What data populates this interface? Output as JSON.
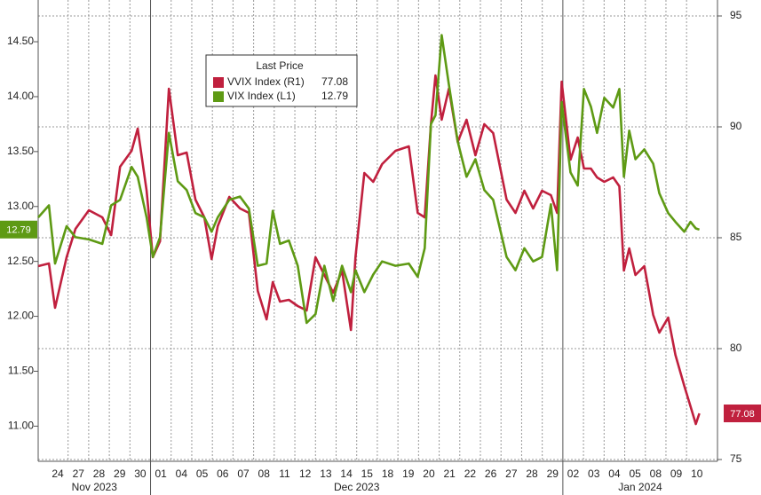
{
  "chart_data": {
    "type": "line",
    "legend_title": "Last Price",
    "legend": "upper left",
    "grid": true,
    "xlim": [
      -0.95,
      32
    ],
    "x": [
      -0.95,
      -0.43,
      -0.13,
      0.43,
      0.86,
      1.51,
      2.16,
      2.59,
      3.02,
      3.58,
      3.88,
      4.31,
      4.61,
      4.96,
      5.39,
      5.82,
      6.25,
      6.68,
      7.11,
      7.46,
      7.76,
      8.32,
      8.84,
      9.27,
      9.7,
      10.13,
      10.43,
      10.78,
      11.21,
      11.64,
      12.07,
      12.5,
      12.93,
      13.36,
      13.79,
      14.22,
      14.44,
      14.87,
      15.3,
      15.73,
      16.38,
      17.03,
      17.46,
      17.8,
      18.1,
      18.32,
      18.62,
      18.97,
      19.4,
      19.83,
      20.26,
      20.69,
      21.12,
      21.77,
      22.2,
      22.63,
      23.06,
      23.49,
      23.92,
      24.22,
      24.44,
      24.87,
      25.22,
      25.52,
      25.86,
      26.16,
      26.51,
      26.94,
      27.24,
      27.46,
      27.72,
      28.02,
      28.45,
      28.88,
      29.18,
      29.61,
      29.96,
      30.39,
      30.69,
      30.95,
      31.12
    ],
    "xticks": [
      {
        "value": 0,
        "label": "24"
      },
      {
        "value": 1,
        "label": "27"
      },
      {
        "value": 2,
        "label": "28"
      },
      {
        "value": 3,
        "label": "29"
      },
      {
        "value": 4,
        "label": "30"
      },
      {
        "value": 5,
        "label": "01"
      },
      {
        "value": 6,
        "label": "04"
      },
      {
        "value": 7,
        "label": "05"
      },
      {
        "value": 8,
        "label": "06"
      },
      {
        "value": 9,
        "label": "07"
      },
      {
        "value": 10,
        "label": "08"
      },
      {
        "value": 11,
        "label": "11"
      },
      {
        "value": 12,
        "label": "12"
      },
      {
        "value": 13,
        "label": "13"
      },
      {
        "value": 14,
        "label": "14"
      },
      {
        "value": 15,
        "label": "15"
      },
      {
        "value": 16,
        "label": "18"
      },
      {
        "value": 17,
        "label": "19"
      },
      {
        "value": 18,
        "label": "20"
      },
      {
        "value": 19,
        "label": "21"
      },
      {
        "value": 20,
        "label": "22"
      },
      {
        "value": 21,
        "label": "26"
      },
      {
        "value": 22,
        "label": "27"
      },
      {
        "value": 23,
        "label": "28"
      },
      {
        "value": 24,
        "label": "29"
      },
      {
        "value": 25,
        "label": "02"
      },
      {
        "value": 26,
        "label": "03"
      },
      {
        "value": 27,
        "label": "04"
      },
      {
        "value": 28,
        "label": "05"
      },
      {
        "value": 29,
        "label": "08"
      },
      {
        "value": 30,
        "label": "09"
      },
      {
        "value": 31,
        "label": "10"
      }
    ],
    "x_groups": [
      "Nov 2023",
      "Dec 2023",
      "Jan 2024"
    ],
    "ylim": [
      10.68,
      14.88
    ],
    "yticks": [
      {
        "value": 11,
        "label": "11.00"
      },
      {
        "value": 11.5,
        "label": "11.50"
      },
      {
        "value": 12,
        "label": "12.00"
      },
      {
        "value": 12.5,
        "label": "12.50"
      },
      {
        "value": 13,
        "label": "13.00"
      },
      {
        "value": 13.5,
        "label": "13.50"
      },
      {
        "value": 14,
        "label": "14.00"
      },
      {
        "value": 14.5,
        "label": "14.50"
      }
    ],
    "y2lim": [
      74.92,
      95.72
    ],
    "y2ticks": [
      75,
      80,
      85,
      90,
      95
    ],
    "series": [
      {
        "name": "VVIX Index  (R1)",
        "color": "#c0203e",
        "axis": "y2",
        "values": [
          83.72,
          83.84,
          81.84,
          84.12,
          85.4,
          86.24,
          85.92,
          85.12,
          88.2,
          88.92,
          89.92,
          87.12,
          84.12,
          84.84,
          91.72,
          88.72,
          88.84,
          86.72,
          85.92,
          84.04,
          85.52,
          86.84,
          86.32,
          86.12,
          82.6,
          81.32,
          83.0,
          82.12,
          82.2,
          81.92,
          81.72,
          84.12,
          83.32,
          82.52,
          83.52,
          80.84,
          84.12,
          87.92,
          87.52,
          88.32,
          88.92,
          89.12,
          86.12,
          85.92,
          90.12,
          92.32,
          90.32,
          91.72,
          89.32,
          90.32,
          88.72,
          90.12,
          89.72,
          86.72,
          86.12,
          87.12,
          86.32,
          87.12,
          86.92,
          86.12,
          92.04,
          88.52,
          89.52,
          88.12,
          88.12,
          87.72,
          87.52,
          87.72,
          87.32,
          83.52,
          84.52,
          83.32,
          83.72,
          81.52,
          80.72,
          81.4,
          79.72,
          78.32,
          77.4,
          76.6,
          77.08
        ]
      },
      {
        "name": "VIX Index  (L1)",
        "color": "#5e9a14",
        "axis": "y",
        "values": [
          12.9,
          13.01,
          12.48,
          12.82,
          12.72,
          12.7,
          12.66,
          13.01,
          13.06,
          13.36,
          13.27,
          12.9,
          12.54,
          12.72,
          13.67,
          13.23,
          13.15,
          12.94,
          12.9,
          12.77,
          12.9,
          13.06,
          13.09,
          12.98,
          12.46,
          12.48,
          12.96,
          12.66,
          12.69,
          12.46,
          11.94,
          12.02,
          12.46,
          12.14,
          12.46,
          12.22,
          12.42,
          12.22,
          12.38,
          12.5,
          12.46,
          12.48,
          12.36,
          12.62,
          13.75,
          13.83,
          14.56,
          14.11,
          13.59,
          13.27,
          13.43,
          13.15,
          13.06,
          12.54,
          12.42,
          12.62,
          12.5,
          12.54,
          13.02,
          12.42,
          13.95,
          13.31,
          13.19,
          14.07,
          13.91,
          13.67,
          13.99,
          13.9,
          14.07,
          13.27,
          13.69,
          13.43,
          13.52,
          13.39,
          13.12,
          12.94,
          12.86,
          12.77,
          12.86,
          12.8,
          12.79
        ]
      }
    ]
  }
}
